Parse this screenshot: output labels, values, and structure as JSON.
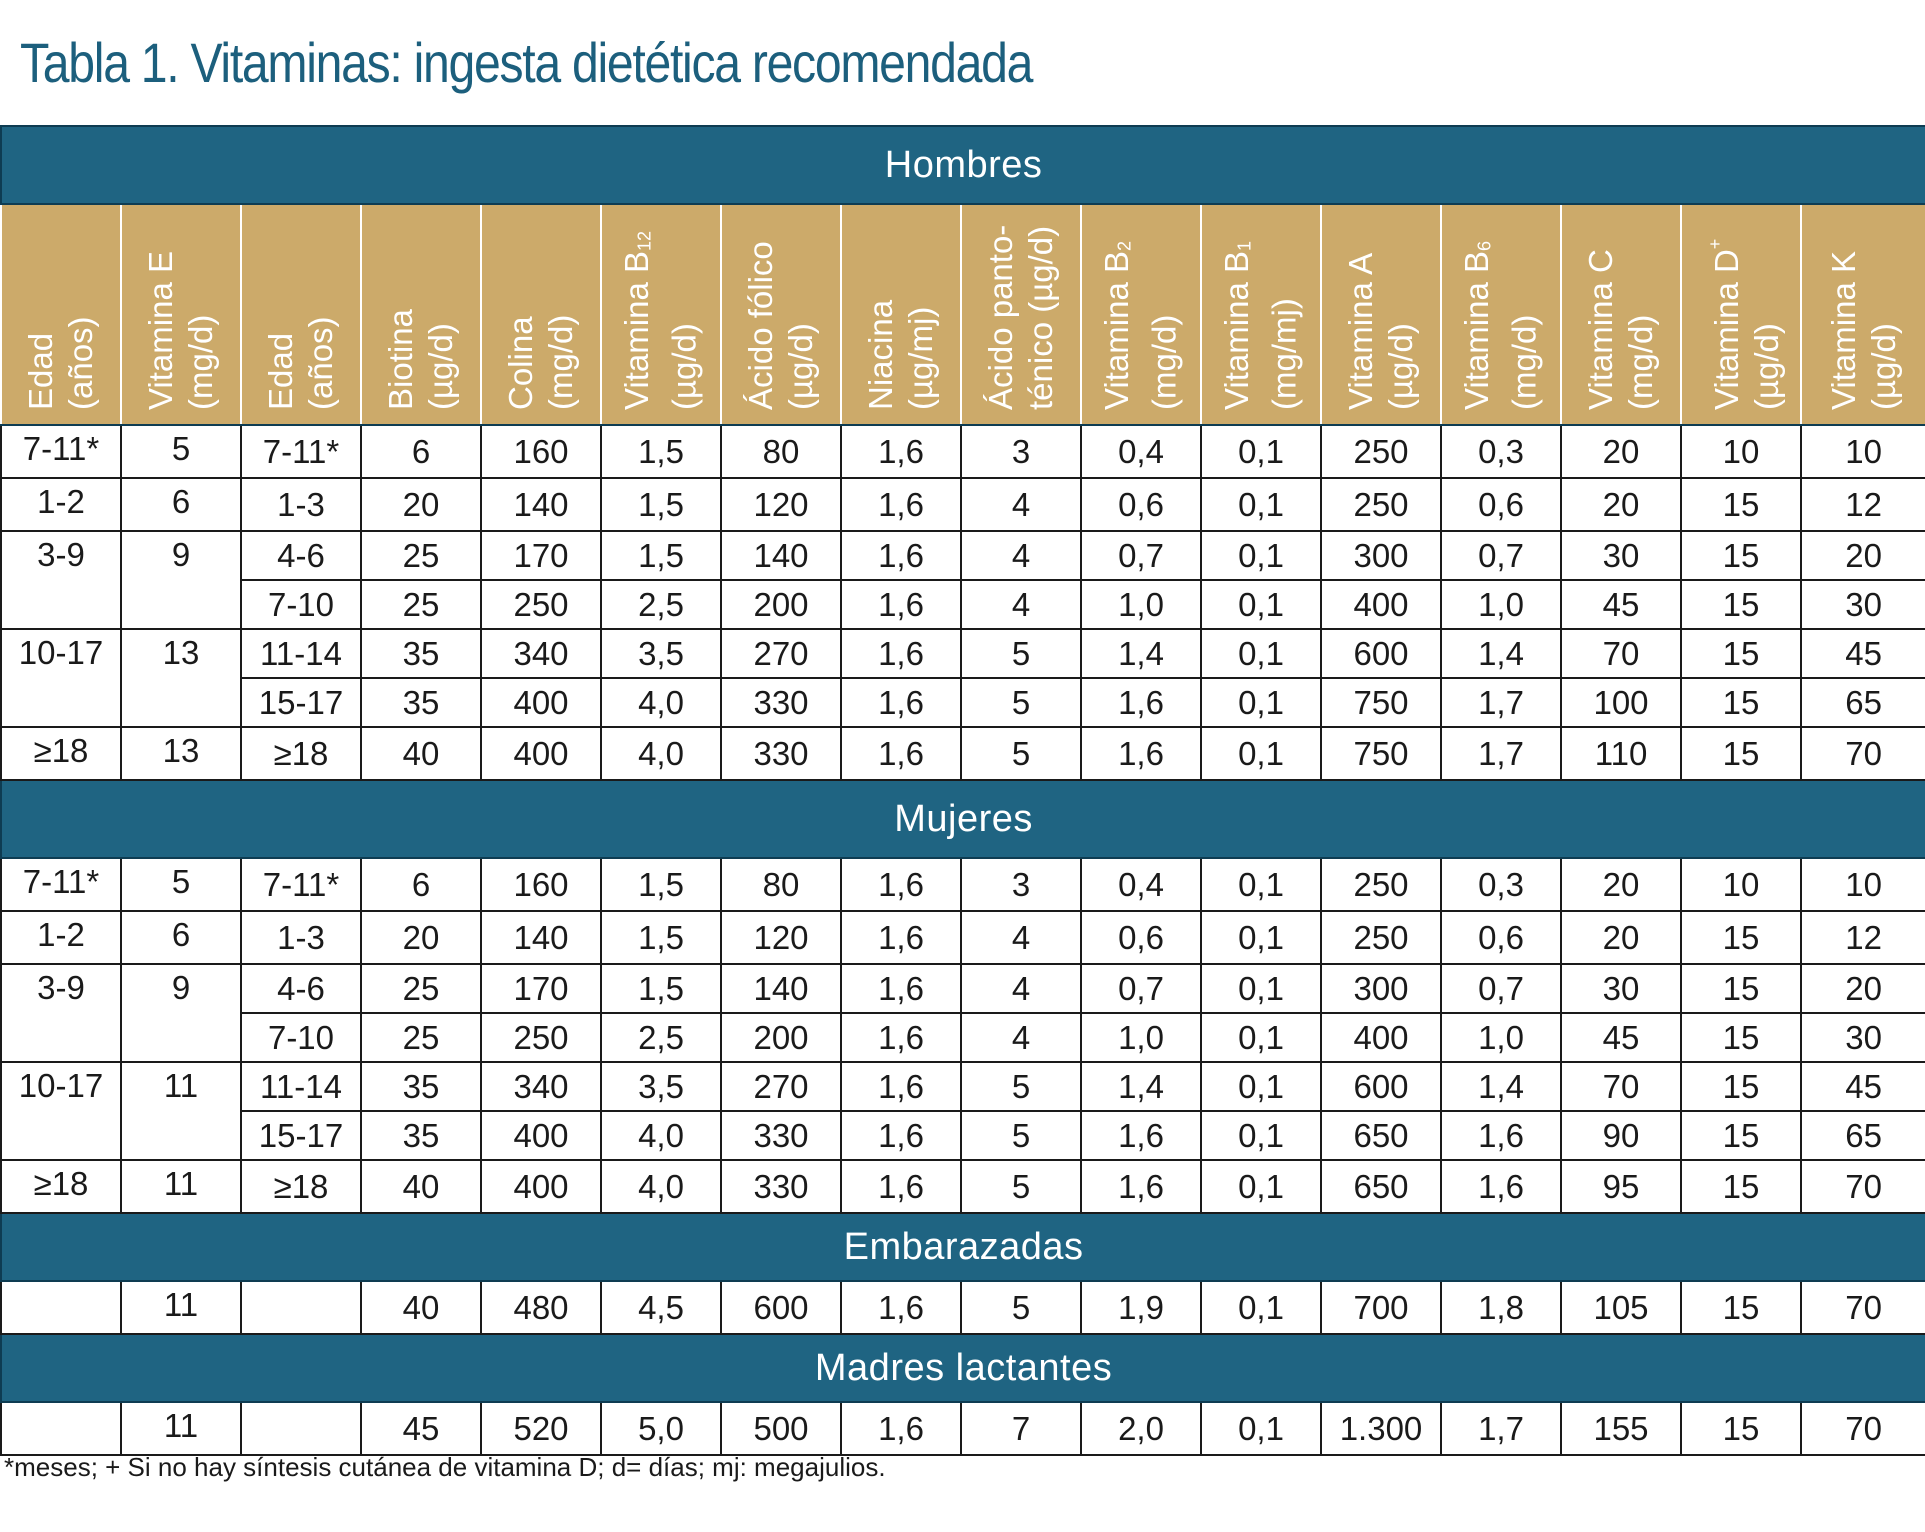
{
  "title": "Tabla 1. Vitaminas: ingesta dietética recomendada",
  "columns": [
    {
      "name": "Edad",
      "unit": "(años)"
    },
    {
      "name": "Vitamina E",
      "unit": "(mg/d)"
    },
    {
      "name": "Edad",
      "unit": "(años)"
    },
    {
      "name": "Biotina",
      "unit": "(µg/d)"
    },
    {
      "name": "Colina",
      "unit": "(mg/d)"
    },
    {
      "name": "Vitamina B",
      "sub": "12",
      "unit": "(µg/d)"
    },
    {
      "name": "Ácido fólico",
      "unit": "(µg/d)"
    },
    {
      "name": "Niacina",
      "unit": "(µg/mj)"
    },
    {
      "name": "Ácido panto-",
      "unit": "ténico (µg/d)"
    },
    {
      "name": "Vitamina B",
      "sub": "2",
      "unit": "(mg/d)"
    },
    {
      "name": "Vitamina B",
      "sub": "1",
      "unit": "(mg/mj)"
    },
    {
      "name": "Vitamina A",
      "unit": "(µg/d)"
    },
    {
      "name": "Vitamina B",
      "sub": "6",
      "unit": "(mg/d)"
    },
    {
      "name": "Vitamina C",
      "unit": "(mg/d)"
    },
    {
      "name": "Vitamina D",
      "sup": "+",
      "unit": "(µg/d)"
    },
    {
      "name": "Vitamina K",
      "unit": "(µg/d)"
    }
  ],
  "sections": [
    {
      "label": "Hombres",
      "groups": [
        {
          "edad": "7-11*",
          "vitE": "5",
          "rows": [
            [
              "7-11*",
              "6",
              "160",
              "1,5",
              "80",
              "1,6",
              "3",
              "0,4",
              "0,1",
              "250",
              "0,3",
              "20",
              "10",
              "10"
            ]
          ]
        },
        {
          "edad": "1-2",
          "vitE": "6",
          "rows": [
            [
              "1-3",
              "20",
              "140",
              "1,5",
              "120",
              "1,6",
              "4",
              "0,6",
              "0,1",
              "250",
              "0,6",
              "20",
              "15",
              "12"
            ]
          ]
        },
        {
          "edad": "3-9",
          "vitE": "9",
          "rows": [
            [
              "4-6",
              "25",
              "170",
              "1,5",
              "140",
              "1,6",
              "4",
              "0,7",
              "0,1",
              "300",
              "0,7",
              "30",
              "15",
              "20"
            ],
            [
              "7-10",
              "25",
              "250",
              "2,5",
              "200",
              "1,6",
              "4",
              "1,0",
              "0,1",
              "400",
              "1,0",
              "45",
              "15",
              "30"
            ]
          ]
        },
        {
          "edad": "10-17",
          "vitE": "13",
          "rows": [
            [
              "11-14",
              "35",
              "340",
              "3,5",
              "270",
              "1,6",
              "5",
              "1,4",
              "0,1",
              "600",
              "1,4",
              "70",
              "15",
              "45"
            ],
            [
              "15-17",
              "35",
              "400",
              "4,0",
              "330",
              "1,6",
              "5",
              "1,6",
              "0,1",
              "750",
              "1,7",
              "100",
              "15",
              "65"
            ]
          ]
        },
        {
          "edad": "≥18",
          "vitE": "13",
          "rows": [
            [
              "≥18",
              "40",
              "400",
              "4,0",
              "330",
              "1,6",
              "5",
              "1,6",
              "0,1",
              "750",
              "1,7",
              "110",
              "15",
              "70"
            ]
          ]
        }
      ]
    },
    {
      "label": "Mujeres",
      "groups": [
        {
          "edad": "7-11*",
          "vitE": "5",
          "rows": [
            [
              "7-11*",
              "6",
              "160",
              "1,5",
              "80",
              "1,6",
              "3",
              "0,4",
              "0,1",
              "250",
              "0,3",
              "20",
              "10",
              "10"
            ]
          ]
        },
        {
          "edad": "1-2",
          "vitE": "6",
          "rows": [
            [
              "1-3",
              "20",
              "140",
              "1,5",
              "120",
              "1,6",
              "4",
              "0,6",
              "0,1",
              "250",
              "0,6",
              "20",
              "15",
              "12"
            ]
          ]
        },
        {
          "edad": "3-9",
          "vitE": "9",
          "rows": [
            [
              "4-6",
              "25",
              "170",
              "1,5",
              "140",
              "1,6",
              "4",
              "0,7",
              "0,1",
              "300",
              "0,7",
              "30",
              "15",
              "20"
            ],
            [
              "7-10",
              "25",
              "250",
              "2,5",
              "200",
              "1,6",
              "4",
              "1,0",
              "0,1",
              "400",
              "1,0",
              "45",
              "15",
              "30"
            ]
          ]
        },
        {
          "edad": "10-17",
          "vitE": "11",
          "rows": [
            [
              "11-14",
              "35",
              "340",
              "3,5",
              "270",
              "1,6",
              "5",
              "1,4",
              "0,1",
              "600",
              "1,4",
              "70",
              "15",
              "45"
            ],
            [
              "15-17",
              "35",
              "400",
              "4,0",
              "330",
              "1,6",
              "5",
              "1,6",
              "0,1",
              "650",
              "1,6",
              "90",
              "15",
              "65"
            ]
          ]
        },
        {
          "edad": "≥18",
          "vitE": "11",
          "rows": [
            [
              "≥18",
              "40",
              "400",
              "4,0",
              "330",
              "1,6",
              "5",
              "1,6",
              "0,1",
              "650",
              "1,6",
              "95",
              "15",
              "70"
            ]
          ]
        }
      ]
    },
    {
      "label": "Embarazadas",
      "groups": [
        {
          "edad": "",
          "vitE": "11",
          "rows": [
            [
              "",
              "40",
              "480",
              "4,5",
              "600",
              "1,6",
              "5",
              "1,9",
              "0,1",
              "700",
              "1,8",
              "105",
              "15",
              "70"
            ]
          ]
        }
      ]
    },
    {
      "label": "Madres lactantes",
      "groups": [
        {
          "edad": "",
          "vitE": "11",
          "rows": [
            [
              "",
              "45",
              "520",
              "5,0",
              "500",
              "1,6",
              "7",
              "2,0",
              "0,1",
              "1.300",
              "1,7",
              "155",
              "15",
              "70"
            ]
          ]
        }
      ]
    }
  ],
  "footnote": "*meses; + Si no hay síntesis cutánea de vitamina D; d= días; mj: megajulios."
}
